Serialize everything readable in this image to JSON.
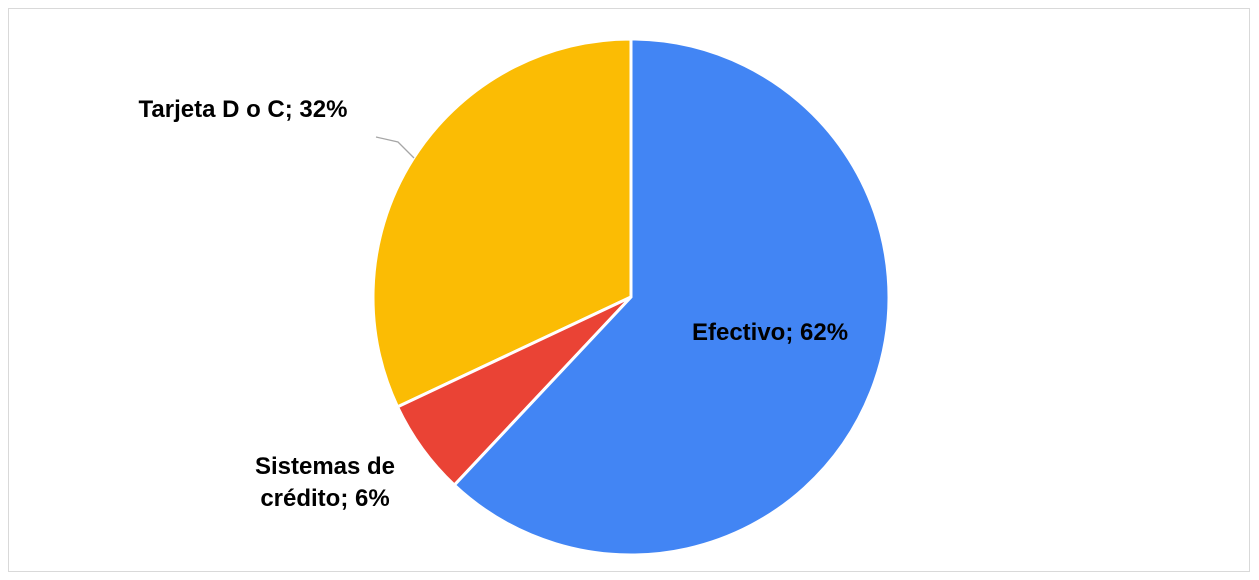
{
  "chart_data": {
    "type": "pie",
    "values": [
      62,
      6,
      32
    ],
    "value_labels": [
      "Efectivo; 62%",
      "Sistemas de crédito; 6%",
      "Tarjeta D o C; 32%"
    ],
    "colors": [
      "#4285f4",
      "#ea4335",
      "#fbbc04"
    ]
  }
}
